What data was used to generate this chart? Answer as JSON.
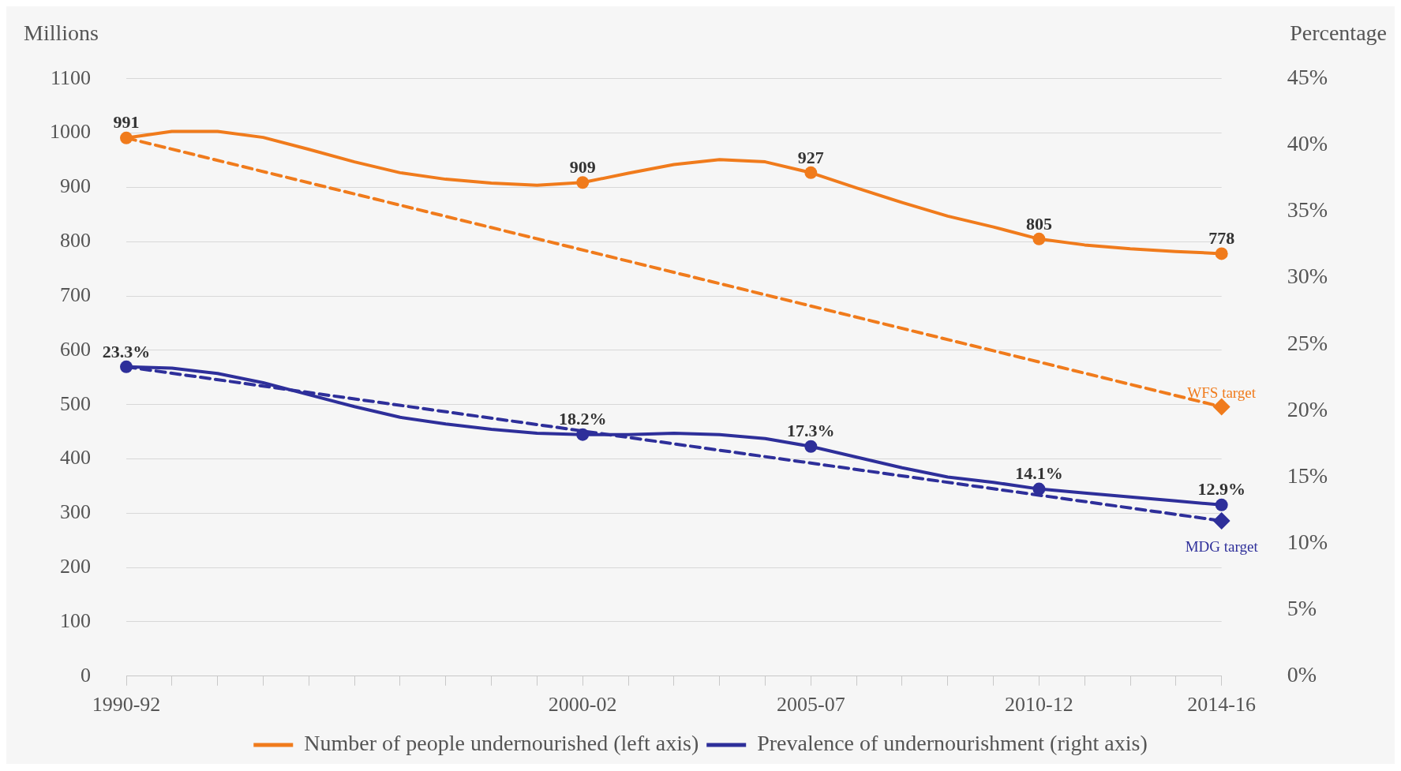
{
  "chart_data": {
    "type": "line",
    "ylabel": "Millions",
    "y2label": "Percentage",
    "categories": [
      "1990-92",
      null,
      null,
      null,
      null,
      null,
      null,
      null,
      null,
      null,
      "2000-02",
      null,
      null,
      null,
      null,
      "2005-07",
      null,
      null,
      null,
      null,
      "2010-12",
      null,
      null,
      null,
      "2014-16"
    ],
    "series": [
      {
        "name": "Number of people undernourished (left axis)",
        "color": "#f07b1c",
        "axis": "y",
        "line_style": "solid",
        "values": [
          991,
          1003,
          1003,
          992,
          970,
          947,
          927,
          915,
          908,
          904,
          909,
          926,
          942,
          951,
          947,
          927,
          899,
          872,
          847,
          827,
          805,
          794,
          787,
          782,
          778
        ],
        "value_labels": [
          "991",
          null,
          null,
          null,
          null,
          null,
          null,
          null,
          null,
          null,
          "909",
          null,
          null,
          null,
          null,
          "927",
          null,
          null,
          null,
          null,
          "805",
          null,
          null,
          null,
          "778"
        ]
      },
      {
        "name": "Prevalence of undernourishment (right axis)",
        "color": "#2e2f9a",
        "axis": "y2",
        "line_style": "solid",
        "values": [
          23.3,
          23.2,
          22.8,
          22.1,
          21.2,
          20.3,
          19.5,
          19.0,
          18.6,
          18.3,
          18.2,
          18.2,
          18.3,
          18.2,
          17.9,
          17.3,
          16.5,
          15.7,
          15.0,
          14.6,
          14.1,
          13.8,
          13.5,
          13.2,
          12.9
        ],
        "value_labels": [
          "23.3%",
          null,
          null,
          null,
          null,
          null,
          null,
          null,
          null,
          null,
          "18.2%",
          null,
          null,
          null,
          null,
          "17.3%",
          null,
          null,
          null,
          null,
          "14.1%",
          null,
          null,
          null,
          "12.9%"
        ]
      },
      {
        "color": "#f07b1c",
        "axis": "y",
        "line_style": "dashed",
        "marker": "diamond",
        "values": [
          991,
          null,
          null,
          null,
          null,
          null,
          null,
          null,
          null,
          null,
          null,
          null,
          null,
          null,
          null,
          null,
          null,
          null,
          null,
          null,
          null,
          null,
          null,
          null,
          496
        ]
      },
      {
        "color": "#2e2f9a",
        "axis": "y2",
        "line_style": "dashed",
        "marker": "diamond",
        "values": [
          23.3,
          null,
          null,
          null,
          null,
          null,
          null,
          null,
          null,
          null,
          null,
          null,
          null,
          null,
          null,
          null,
          null,
          null,
          null,
          null,
          null,
          null,
          null,
          null,
          11.7
        ]
      }
    ],
    "annotations": [
      "WFS target",
      "MDG target"
    ],
    "ylim": [
      0,
      1100
    ],
    "yticks": [
      0,
      100,
      200,
      300,
      400,
      500,
      600,
      700,
      800,
      900,
      1000,
      1100
    ],
    "y2lim": [
      0,
      45
    ],
    "y2ticks": [
      {
        "value": 0,
        "label": "0%"
      },
      {
        "value": 5,
        "label": "5%"
      },
      {
        "value": 10,
        "label": "10%"
      },
      {
        "value": 15,
        "label": "15%"
      },
      {
        "value": 20,
        "label": "20%"
      },
      {
        "value": 25,
        "label": "25%"
      },
      {
        "value": 30,
        "label": "30%"
      },
      {
        "value": 35,
        "label": "35%"
      },
      {
        "value": 40,
        "label": "40%"
      },
      {
        "value": 45,
        "label": "45%"
      }
    ],
    "grid": "y",
    "legend": "bottom"
  }
}
